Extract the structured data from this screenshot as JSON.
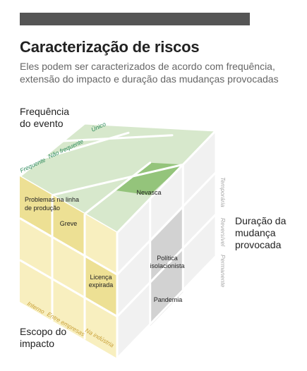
{
  "title": "Caracterização de riscos",
  "subtitle": [
    "Eles podem ser caracterizados de acordo com frequência,",
    "extensão do impacto e duração das mudanças provocadas"
  ],
  "axes": {
    "frequency": {
      "title": [
        "Frequência",
        "do evento"
      ],
      "levels": [
        "Frequente",
        "Não frequente",
        "Único"
      ]
    },
    "duration": {
      "title": [
        "Duração da",
        "mudança",
        "provocada"
      ],
      "levels": [
        "Temporária",
        "Reversível",
        "Permanente"
      ]
    },
    "scope": {
      "title": [
        "Escopo do",
        "impacto"
      ],
      "levels": [
        "Interno",
        "Entre empresas",
        "Na indústria"
      ]
    }
  },
  "risks": {
    "nevasca": "Nevasca",
    "problemas": [
      "Problemas na linha",
      "de produção"
    ],
    "greve": "Greve",
    "licenca": [
      "Licença",
      "expirada"
    ],
    "politica": [
      "Política",
      "isolacionista"
    ],
    "pandemia": "Pandemia"
  },
  "colors": {
    "top_face": "#d7e8cc",
    "top_highlight": "#94c47b",
    "left_face": "#f8efbf",
    "left_highlight": "#ede094",
    "right_face": "#f1f1f1",
    "right_highlight": "#d2d2d2",
    "frequency_text": "#2d8a5c",
    "scope_text": "#c9a13a",
    "duration_text": "#a8a8a8"
  }
}
